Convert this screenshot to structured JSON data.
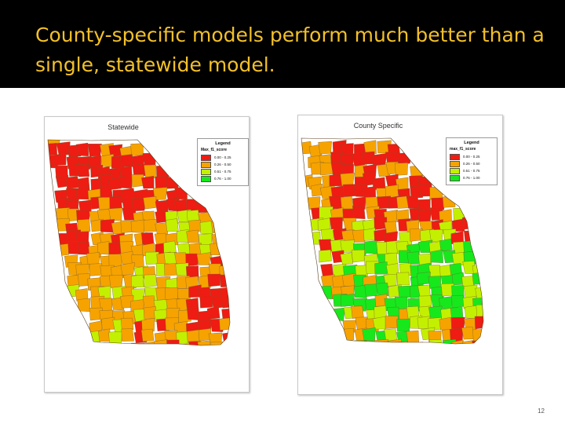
{
  "slide": {
    "title": "County-specific models perform much better than a single, statewide model.",
    "page_number": "12"
  },
  "colors": {
    "title_bar": "#000000",
    "title_text": "#f2c029",
    "class_1": "#ee1c12",
    "class_2": "#f6a300",
    "class_3": "#c3f000",
    "class_4": "#16e81c"
  },
  "maps": [
    {
      "title": "Statewide",
      "legend": {
        "title": "Legend",
        "field": "Max_f1_score",
        "classes": [
          {
            "label": "0.00 - 0.25",
            "color": "#ee1c12"
          },
          {
            "label": "0.26 - 0.50",
            "color": "#f6a300"
          },
          {
            "label": "0.51 - 0.75",
            "color": "#c3f000"
          },
          {
            "label": "0.76 - 1.00",
            "color": "#16e81c"
          }
        ]
      }
    },
    {
      "title": "County Specific",
      "legend": {
        "title": "Legend",
        "field": "max_f1_score",
        "classes": [
          {
            "label": "0.00 - 0.25",
            "color": "#ee1c12"
          },
          {
            "label": "0.26 - 0.50",
            "color": "#f6a300"
          },
          {
            "label": "0.51 - 0.75",
            "color": "#c3f000"
          },
          {
            "label": "0.76 - 1.00",
            "color": "#16e81c"
          }
        ]
      }
    }
  ]
}
